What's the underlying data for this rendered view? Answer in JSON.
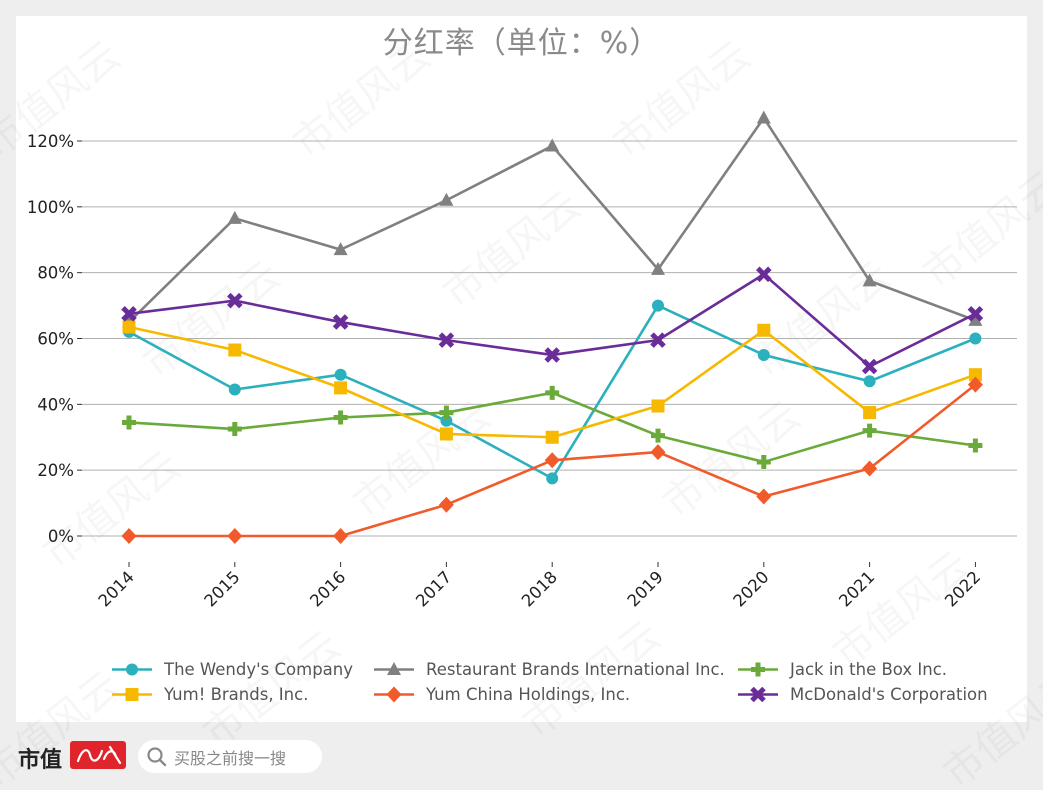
{
  "title": "分红率（单位：%）",
  "chart_data": {
    "type": "line",
    "title": "分红率（单位：%）",
    "xlabel": "",
    "ylabel": "",
    "categories": [
      "2014",
      "2015",
      "2016",
      "2017",
      "2018",
      "2019",
      "2020",
      "2021",
      "2022"
    ],
    "ylim": [
      -8,
      130
    ],
    "yticks": [
      0,
      20,
      40,
      60,
      80,
      100,
      120
    ],
    "ytick_labels": [
      "0%",
      "20%",
      "40%",
      "60%",
      "80%",
      "100%",
      "120%"
    ],
    "grid": "horizontal",
    "legend_placement": "bottom",
    "series": [
      {
        "name": "The Wendy's Company",
        "color": "#2bb0bd",
        "marker": "circle",
        "values": [
          62,
          44.5,
          49,
          35,
          17.5,
          70,
          55,
          47,
          60
        ]
      },
      {
        "name": "Restaurant Brands International Inc.",
        "color": "#808080",
        "marker": "triangle",
        "values": [
          65,
          96.5,
          87,
          102,
          118.5,
          81,
          127,
          77.5,
          65.5
        ]
      },
      {
        "name": "Jack in the Box Inc.",
        "color": "#6aaa3a",
        "marker": "plus",
        "values": [
          34.5,
          32.5,
          36,
          37.5,
          43.5,
          30.5,
          22.5,
          32,
          27.5
        ]
      },
      {
        "name": "Yum! Brands, Inc.",
        "color": "#f7b800",
        "marker": "square",
        "values": [
          63.5,
          56.5,
          45,
          31,
          30,
          39.5,
          62.5,
          37.5,
          49
        ]
      },
      {
        "name": "Yum China Holdings, Inc.",
        "color": "#f15a2b",
        "marker": "diamond",
        "values": [
          0,
          0,
          0,
          9.5,
          23,
          25.5,
          12,
          20.5,
          46
        ]
      },
      {
        "name": "McDonald's Corporation",
        "color": "#6a2c98",
        "marker": "x",
        "values": [
          67.5,
          71.5,
          65,
          59.5,
          55,
          59.5,
          79.5,
          51.5,
          67.5
        ]
      }
    ]
  },
  "watermark": "市值风云",
  "footer": {
    "brand": "市值",
    "search_placeholder": "买股之前搜一搜",
    "search_icon": "search-icon"
  }
}
